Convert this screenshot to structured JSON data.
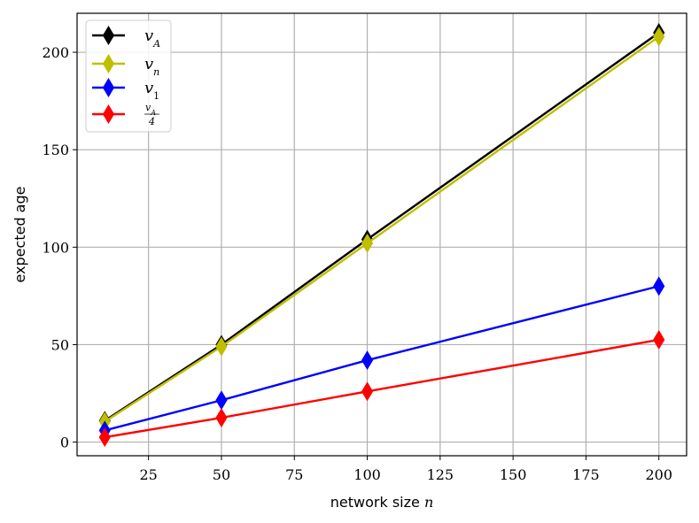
{
  "chart_data": {
    "type": "line",
    "x": [
      10,
      50,
      100,
      200
    ],
    "series": [
      {
        "name": "v_A",
        "color": "#000000",
        "values": [
          11,
          50,
          104,
          210
        ]
      },
      {
        "name": "v_n",
        "color": "#bfbf00",
        "values": [
          10.5,
          49,
          102,
          208
        ]
      },
      {
        "name": "v_1",
        "color": "#0000ff",
        "values": [
          6,
          21.5,
          42,
          80
        ]
      },
      {
        "name": "v_A / 4",
        "color": "#ff0000",
        "values": [
          2.5,
          12.5,
          26,
          52.5
        ]
      }
    ],
    "marker": "thin_diamond",
    "xlabel_text": "network size",
    "xlabel_var": "n",
    "ylabel": "expected age",
    "xlim": [
      0.5,
      209.5
    ],
    "ylim": [
      -7,
      220
    ],
    "xticks": [
      25,
      50,
      75,
      100,
      125,
      150,
      175,
      200
    ],
    "yticks": [
      0,
      50,
      100,
      150,
      200
    ],
    "grid": true,
    "legend_position": "upper left",
    "legend": [
      {
        "base": "v",
        "sub": "A"
      },
      {
        "base": "v",
        "sub": "n"
      },
      {
        "base": "v",
        "sub": "1"
      },
      {
        "base": "v",
        "sub": "A",
        "denominator": "4"
      }
    ]
  }
}
